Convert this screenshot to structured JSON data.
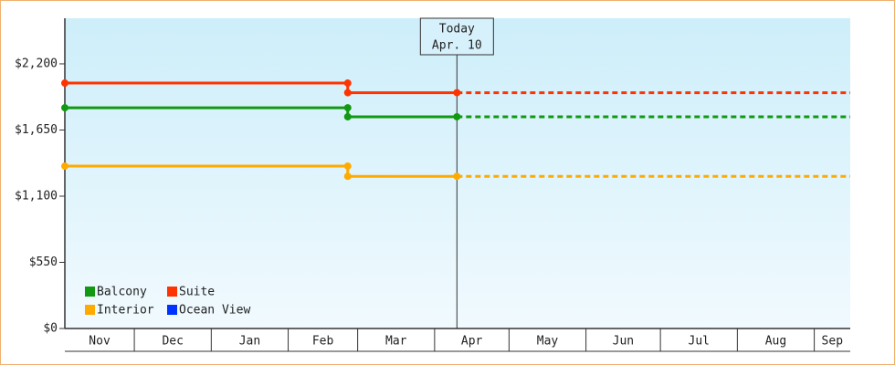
{
  "chart_data": {
    "type": "line",
    "x": [
      2,
      116,
      116,
      160,
      318.5
    ],
    "xlim": [
      2,
      318.5
    ],
    "xticks": [
      {
        "value": 0,
        "label": "Nov"
      },
      {
        "value": 30,
        "label": "Dec"
      },
      {
        "value": 61,
        "label": "Jan"
      },
      {
        "value": 92,
        "label": "Feb"
      },
      {
        "value": 120,
        "label": "Mar"
      },
      {
        "value": 151,
        "label": "Apr"
      },
      {
        "value": 181,
        "label": "May"
      },
      {
        "value": 212,
        "label": "Jun"
      },
      {
        "value": 242,
        "label": "Jul"
      },
      {
        "value": 273,
        "label": "Aug"
      },
      {
        "value": 304,
        "label": "Sep"
      }
    ],
    "ylim": [
      0,
      2579
    ],
    "yticks": [
      {
        "value": 0,
        "label": "$0"
      },
      {
        "value": 550,
        "label": "$550"
      },
      {
        "value": 1100,
        "label": "$1,100"
      },
      {
        "value": 1650,
        "label": "$1,650"
      },
      {
        "value": 2200,
        "label": "$2,200"
      }
    ],
    "today": {
      "value": 160,
      "label": "Today",
      "date": "Apr. 10"
    },
    "series": [
      {
        "name": "Balcony",
        "color": "#119911",
        "values": [
          1835,
          1835,
          1760,
          1760,
          1760
        ]
      },
      {
        "name": "Suite",
        "color": "#ff3300",
        "values": [
          2040,
          2040,
          1960,
          1960,
          1960
        ]
      },
      {
        "name": "Interior",
        "color": "#ffaa00",
        "values": [
          1350,
          1350,
          1265,
          1265,
          1265
        ]
      },
      {
        "name": "Ocean View",
        "color": "#0033ff",
        "values": [
          null,
          null,
          null,
          null,
          null
        ]
      }
    ],
    "legend": "bottom-left"
  }
}
